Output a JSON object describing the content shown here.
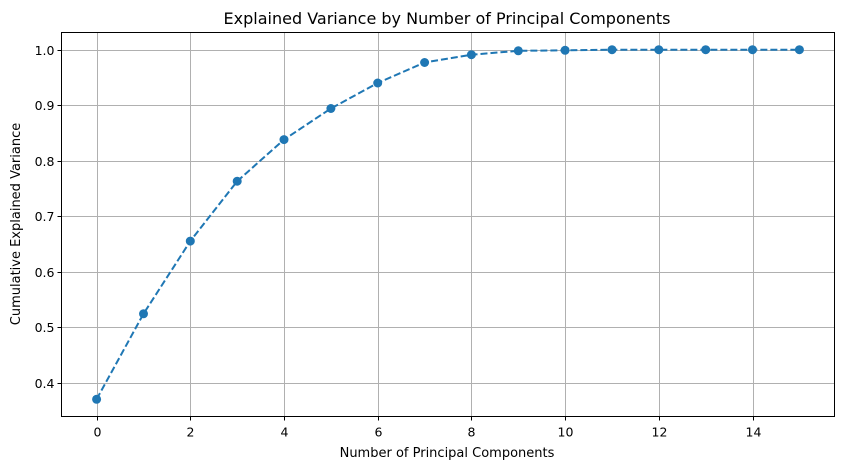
{
  "chart_data": {
    "type": "line",
    "title": "Explained Variance by Number of Principal Components",
    "xlabel": "Number of Principal Components",
    "ylabel": "Cumulative Explained Variance",
    "x": [
      0,
      1,
      2,
      3,
      4,
      5,
      6,
      7,
      8,
      9,
      10,
      11,
      12,
      13,
      14,
      15
    ],
    "series": [
      {
        "name": "Cumulative Explained Variance",
        "values": [
          0.37,
          0.524,
          0.655,
          0.763,
          0.838,
          0.894,
          0.94,
          0.977,
          0.991,
          0.998,
          0.999,
          1.0,
          1.0,
          1.0,
          1.0,
          1.0
        ],
        "color": "#1f77b4",
        "line_style": "dashed",
        "marker": "circle"
      }
    ],
    "xlim": [
      -0.75,
      15.75
    ],
    "ylim": [
      0.339,
      1.031
    ],
    "xticks": [
      0,
      2,
      4,
      6,
      8,
      10,
      12,
      14
    ],
    "xtick_labels": [
      "0",
      "2",
      "4",
      "6",
      "8",
      "10",
      "12",
      "14"
    ],
    "yticks": [
      0.4,
      0.5,
      0.6,
      0.7,
      0.8,
      0.9,
      1.0
    ],
    "ytick_labels": [
      "0.4",
      "0.5",
      "0.6",
      "0.7",
      "0.8",
      "0.9",
      "1.0"
    ],
    "grid": true,
    "legend": null
  }
}
